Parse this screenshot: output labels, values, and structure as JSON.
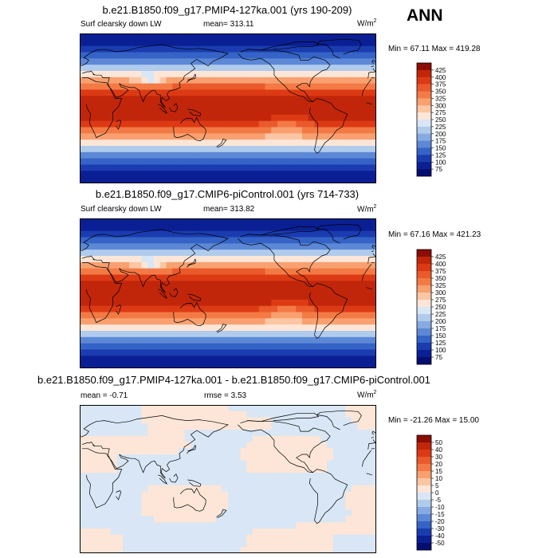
{
  "season": "ANN",
  "chart_data": [
    {
      "type": "heatmap",
      "title": "b.e21.B1850.f09_g17.PMIP4-127ka.001 (yrs 190-209)",
      "variable": "Surf clearsky down LW",
      "mean_text": "mean= 313.11",
      "units_base": "W/m",
      "units_exp": "2",
      "minmax_text": "Min =  67.11 Max = 419.28",
      "min": 67.11,
      "max": 419.28,
      "mean": 313.11,
      "levels": [
        "425",
        "400",
        "375",
        "350",
        "325",
        "300",
        "275",
        "250",
        "225",
        "200",
        "175",
        "150",
        "125",
        "100",
        "75"
      ],
      "colors": [
        "#8b0d03",
        "#c1260a",
        "#dc3a14",
        "#ea5a2a",
        "#f37a45",
        "#f8a070",
        "#fbc6a4",
        "#fde6d7",
        "#d8e6f5",
        "#b0cbec",
        "#86aae2",
        "#5c88d6",
        "#3563c6",
        "#1a3cb0",
        "#0b1f94",
        "#050e70"
      ]
    },
    {
      "type": "heatmap",
      "title": "b.e21.B1850.f09_g17.CMIP6-piControl.001 (yrs 714-733)",
      "variable": "Surf clearsky down LW",
      "mean_text": "mean= 313.82",
      "units_base": "W/m",
      "units_exp": "2",
      "minmax_text": "Min =  67.16 Max = 421.23",
      "min": 67.16,
      "max": 421.23,
      "mean": 313.82,
      "levels": [
        "425",
        "400",
        "375",
        "350",
        "325",
        "300",
        "275",
        "250",
        "225",
        "200",
        "175",
        "150",
        "125",
        "100",
        "75"
      ],
      "colors": [
        "#8b0d03",
        "#c1260a",
        "#dc3a14",
        "#ea5a2a",
        "#f37a45",
        "#f8a070",
        "#fbc6a4",
        "#fde6d7",
        "#d8e6f5",
        "#b0cbec",
        "#86aae2",
        "#5c88d6",
        "#3563c6",
        "#1a3cb0",
        "#0b1f94",
        "#050e70"
      ]
    },
    {
      "type": "heatmap",
      "title": "b.e21.B1850.f09_g17.PMIP4-127ka.001 - b.e21.B1850.f09_g17.CMIP6-piControl.001",
      "variable": "",
      "mean_text": "mean =  -0.71",
      "rmse_text": "rmse =    3.53",
      "units_base": "W/m",
      "units_exp": "2",
      "minmax_text": "Min = -21.26 Max =  15.00",
      "min": -21.26,
      "max": 15.0,
      "mean": -0.71,
      "rmse": 3.53,
      "levels": [
        "50",
        "40",
        "30",
        "20",
        "15",
        "10",
        "5",
        "0",
        "-5",
        "-10",
        "-15",
        "-20",
        "-30",
        "-40",
        "-50"
      ],
      "colors": [
        "#8b0d03",
        "#c1260a",
        "#dc3a14",
        "#ea5a2a",
        "#f37a45",
        "#f8a070",
        "#fbc6a4",
        "#fde6d7",
        "#d8e6f5",
        "#b0cbec",
        "#86aae2",
        "#5c88d6",
        "#3563c6",
        "#1a3cb0",
        "#0b1f94",
        "#050e70"
      ]
    }
  ]
}
